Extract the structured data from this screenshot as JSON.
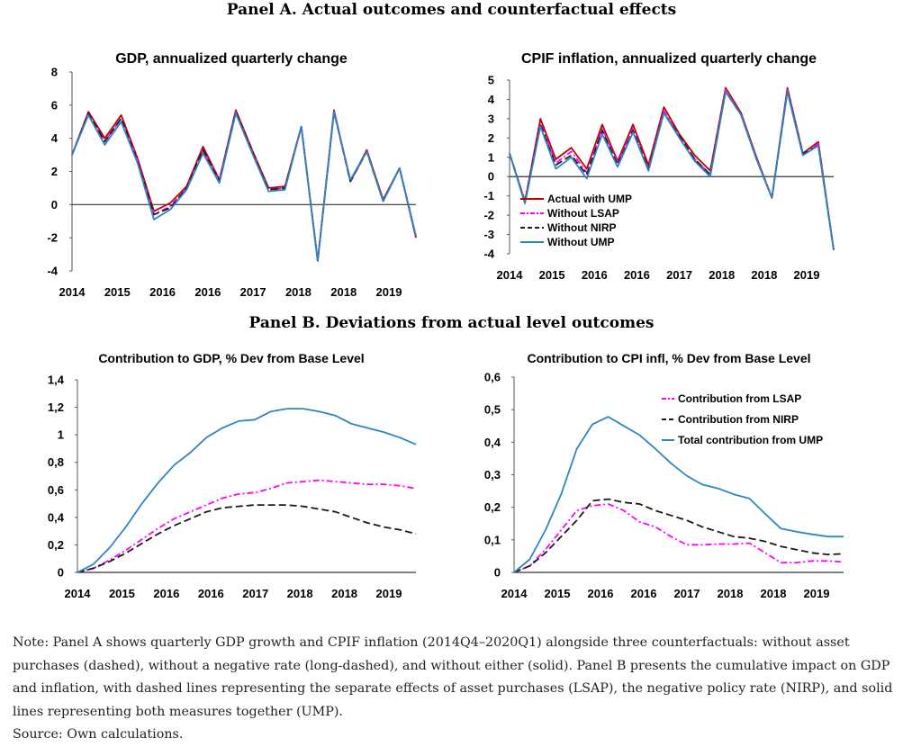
{
  "panel_a": {
    "title": "Panel A. Actual outcomes and counterfactual effects"
  },
  "panel_b": {
    "title": "Panel B. Deviations from actual level outcomes"
  },
  "note": "Note: Panel A shows quarterly GDP growth and CPIF inflation (2014Q4–2020Q1) alongside three counterfactuals: without asset purchases (dashed), without a negative rate (long-dashed), and without either (solid). Panel B presents the cumulative impact on GDP and inflation, with dashed lines representing the separate effects of asset purchases (LSAP), the negative policy rate (NIRP), and solid lines representing both measures together (UMP).",
  "source": "Source: Own calculations.",
  "colors": {
    "red": "#c00000",
    "magenta": "#ff00ff",
    "black": "#1a1a1a",
    "blue": "#2e86c1"
  },
  "chart_data": [
    {
      "id": "gdp",
      "type": "line",
      "title": "GDP, annualized quarterly change",
      "x_tick_labels": [
        "2014",
        "2015",
        "2016",
        "2016",
        "2017",
        "2018",
        "2018",
        "2019"
      ],
      "ylim": [
        -4,
        8
      ],
      "y_ticks": [
        "8",
        "6",
        "4",
        "2",
        "0",
        "-2",
        "-4"
      ],
      "zero_line": true,
      "series": [
        {
          "key": "actual",
          "color": "#c00000",
          "dash": "solid",
          "values": [
            3.0,
            5.6,
            4.0,
            5.4,
            2.8,
            -0.4,
            0.1,
            1.1,
            3.5,
            1.5,
            5.7,
            3.3,
            1.0,
            1.1,
            4.7,
            -3.4,
            5.7,
            1.4,
            3.3,
            0.3,
            2.2,
            -2.0
          ]
        },
        {
          "key": "lsap",
          "color": "#ff00ff",
          "dash": "dashdot",
          "values": [
            3.0,
            5.5,
            3.8,
            5.2,
            2.7,
            -0.6,
            -0.1,
            1.0,
            3.3,
            1.5,
            5.6,
            3.2,
            0.9,
            1.0,
            4.7,
            -3.4,
            5.6,
            1.4,
            3.2,
            0.2,
            2.2,
            -1.9
          ]
        },
        {
          "key": "nirp",
          "color": "#1a1a1a",
          "dash": "dash",
          "values": [
            3.0,
            5.5,
            3.8,
            5.2,
            2.6,
            -0.6,
            -0.2,
            1.0,
            3.3,
            1.4,
            5.6,
            3.2,
            0.9,
            1.0,
            4.7,
            -3.4,
            5.6,
            1.4,
            3.2,
            0.2,
            2.2,
            -1.9
          ]
        },
        {
          "key": "ump",
          "color": "#2e86c1",
          "dash": "solid",
          "values": [
            3.0,
            5.4,
            3.6,
            5.0,
            2.5,
            -0.9,
            -0.3,
            0.9,
            3.1,
            1.3,
            5.5,
            3.1,
            0.8,
            0.9,
            4.7,
            -3.4,
            5.6,
            1.5,
            3.2,
            0.2,
            2.2,
            -1.9
          ]
        }
      ]
    },
    {
      "id": "cpif",
      "type": "line",
      "title": "CPIF inflation, annualized quarterly change",
      "x_tick_labels": [
        "2014",
        "2015",
        "2016",
        "2016",
        "2017",
        "2018",
        "2018",
        "2019"
      ],
      "ylim": [
        -4,
        5
      ],
      "y_ticks": [
        "5",
        "4",
        "3",
        "2",
        "1",
        "0",
        "-1",
        "-2",
        "-3",
        "-4"
      ],
      "zero_line": true,
      "legend": {
        "position": "lower-left",
        "labels": [
          "Actual with UMP",
          "Without LSAP",
          "Without NIRP",
          "Without UMP"
        ]
      },
      "series": [
        {
          "key": "actual",
          "color": "#c00000",
          "dash": "solid",
          "values": [
            1.2,
            -1.3,
            3.0,
            0.9,
            1.5,
            0.4,
            2.7,
            0.8,
            2.7,
            0.6,
            3.6,
            2.2,
            1.1,
            0.3,
            4.6,
            3.3,
            1.0,
            -1.1,
            4.6,
            1.2,
            1.8,
            -3.8
          ]
        },
        {
          "key": "lsap",
          "color": "#ff00ff",
          "dash": "dashdot",
          "values": [
            1.2,
            -1.3,
            2.8,
            0.7,
            1.3,
            0.2,
            2.5,
            0.7,
            2.5,
            0.4,
            3.4,
            2.1,
            0.9,
            0.1,
            4.5,
            3.2,
            0.9,
            -1.1,
            4.5,
            1.2,
            1.7,
            -3.8
          ]
        },
        {
          "key": "nirp",
          "color": "#1a1a1a",
          "dash": "dash",
          "values": [
            1.2,
            -1.3,
            2.7,
            0.6,
            1.1,
            0.1,
            2.4,
            0.6,
            2.4,
            0.4,
            3.3,
            2.1,
            0.9,
            0.1,
            4.4,
            3.2,
            0.9,
            -1.1,
            4.4,
            1.2,
            1.6,
            -3.8
          ]
        },
        {
          "key": "ump",
          "color": "#2e86c1",
          "dash": "solid",
          "values": [
            1.2,
            -1.4,
            2.6,
            0.4,
            1.0,
            -0.1,
            2.2,
            0.5,
            2.3,
            0.3,
            3.3,
            2.0,
            0.8,
            0.0,
            4.4,
            3.2,
            0.9,
            -1.1,
            4.4,
            1.1,
            1.6,
            -3.8
          ]
        }
      ]
    },
    {
      "id": "gdp_dev",
      "type": "line",
      "title": "Contribution to GDP, % Dev from Base Level",
      "x_tick_labels": [
        "2014",
        "2015",
        "2016",
        "2016",
        "2017",
        "2018",
        "2018",
        "2019"
      ],
      "ylim": [
        0,
        1.4
      ],
      "y_ticks": [
        "1,4",
        "1,2",
        "1",
        "0,8",
        "0,6",
        "0,4",
        "0,2",
        "0"
      ],
      "series": [
        {
          "key": "lsap",
          "color": "#ff00ff",
          "dash": "dashdot",
          "values": [
            0.0,
            0.03,
            0.09,
            0.16,
            0.24,
            0.32,
            0.39,
            0.44,
            0.49,
            0.54,
            0.57,
            0.58,
            0.61,
            0.65,
            0.66,
            0.67,
            0.66,
            0.65,
            0.64,
            0.64,
            0.63,
            0.61
          ]
        },
        {
          "key": "nirp",
          "color": "#1a1a1a",
          "dash": "dash",
          "values": [
            0.0,
            0.03,
            0.08,
            0.14,
            0.21,
            0.28,
            0.34,
            0.39,
            0.44,
            0.47,
            0.48,
            0.49,
            0.49,
            0.49,
            0.48,
            0.46,
            0.44,
            0.4,
            0.36,
            0.33,
            0.31,
            0.28
          ]
        },
        {
          "key": "ump",
          "color": "#2e86c1",
          "dash": "solid",
          "values": [
            0.0,
            0.06,
            0.18,
            0.33,
            0.5,
            0.65,
            0.78,
            0.87,
            0.98,
            1.05,
            1.1,
            1.11,
            1.17,
            1.19,
            1.19,
            1.17,
            1.14,
            1.08,
            1.05,
            1.02,
            0.98,
            0.93
          ]
        }
      ]
    },
    {
      "id": "cpi_dev",
      "type": "line",
      "title": "Contribution to CPI infl, % Dev from Base Level",
      "x_tick_labels": [
        "2014",
        "2015",
        "2016",
        "2016",
        "2017",
        "2018",
        "2018",
        "2019"
      ],
      "ylim": [
        0,
        0.6
      ],
      "y_ticks": [
        "0,6",
        "0,5",
        "0,4",
        "0,3",
        "0,2",
        "0,1",
        "0"
      ],
      "legend": {
        "position": "top-right",
        "labels": [
          "Contribution from LSAP",
          "Contribution from NIRP",
          "Total contribution from UMP"
        ]
      },
      "series": [
        {
          "key": "lsap",
          "color": "#ff00ff",
          "dash": "dashdot",
          "values": [
            0.0,
            0.02,
            0.07,
            0.13,
            0.19,
            0.205,
            0.21,
            0.19,
            0.155,
            0.14,
            0.11,
            0.085,
            0.085,
            0.087,
            0.087,
            0.09,
            0.06,
            0.03,
            0.03,
            0.035,
            0.035,
            0.032
          ]
        },
        {
          "key": "nirp",
          "color": "#1a1a1a",
          "dash": "dash",
          "values": [
            0.0,
            0.02,
            0.06,
            0.11,
            0.16,
            0.22,
            0.225,
            0.215,
            0.21,
            0.19,
            0.175,
            0.16,
            0.14,
            0.125,
            0.11,
            0.105,
            0.095,
            0.08,
            0.07,
            0.06,
            0.055,
            0.057
          ]
        },
        {
          "key": "ump",
          "color": "#2e86c1",
          "dash": "solid",
          "values": [
            0.0,
            0.04,
            0.13,
            0.24,
            0.38,
            0.455,
            0.478,
            0.45,
            0.422,
            0.38,
            0.335,
            0.297,
            0.27,
            0.258,
            0.24,
            0.227,
            0.18,
            0.135,
            0.125,
            0.117,
            0.11,
            0.11
          ]
        }
      ]
    }
  ]
}
